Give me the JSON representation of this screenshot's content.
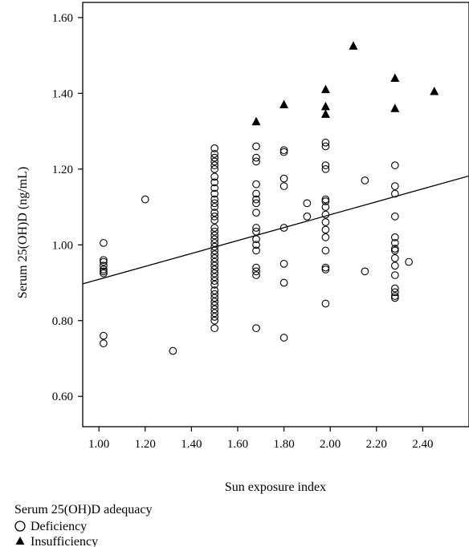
{
  "chart_data": {
    "type": "scatter",
    "title": "",
    "xlabel": "Sun exposure index",
    "ylabel": "Serum 25(OH)D (ng/mL)",
    "xlim": [
      0.93,
      2.6
    ],
    "ylim": [
      0.52,
      1.64
    ],
    "x_ticks": [
      1.0,
      1.2,
      1.4,
      1.6,
      1.8,
      2.0,
      2.2,
      2.4
    ],
    "x_tick_labels": [
      "1.00",
      "1.20",
      "1.40",
      "1.60",
      "1.80",
      "2.00",
      "2.20",
      "2.40"
    ],
    "y_ticks": [
      0.6,
      0.8,
      1.0,
      1.2,
      1.4,
      1.6
    ],
    "y_tick_labels": [
      "0.60",
      "0.80",
      "1.00",
      "1.20",
      "1.40",
      "1.60"
    ],
    "grid": false,
    "legend": {
      "title": "Serum 25(OH)D adequacy",
      "placement": "bottom-left",
      "entries": [
        "Deficiency",
        "Insufficiency"
      ]
    },
    "fit_line": {
      "x": [
        0.93,
        2.6
      ],
      "y": [
        0.897,
        1.182
      ]
    },
    "series": [
      {
        "name": "Deficiency",
        "marker": "open-circle",
        "points": [
          [
            1.02,
            1.005
          ],
          [
            1.02,
            0.96
          ],
          [
            1.02,
            0.955
          ],
          [
            1.02,
            0.945
          ],
          [
            1.02,
            0.935
          ],
          [
            1.02,
            0.93
          ],
          [
            1.02,
            0.925
          ],
          [
            1.02,
            0.76
          ],
          [
            1.02,
            0.74
          ],
          [
            1.2,
            1.12
          ],
          [
            1.32,
            0.72
          ],
          [
            1.5,
            1.255
          ],
          [
            1.5,
            1.24
          ],
          [
            1.5,
            1.23
          ],
          [
            1.5,
            1.22
          ],
          [
            1.5,
            1.21
          ],
          [
            1.5,
            1.2
          ],
          [
            1.5,
            1.18
          ],
          [
            1.5,
            1.165
          ],
          [
            1.5,
            1.15
          ],
          [
            1.5,
            1.135
          ],
          [
            1.5,
            1.12
          ],
          [
            1.5,
            1.11
          ],
          [
            1.5,
            1.1
          ],
          [
            1.5,
            1.085
          ],
          [
            1.5,
            1.075
          ],
          [
            1.5,
            1.065
          ],
          [
            1.5,
            1.045
          ],
          [
            1.5,
            1.035
          ],
          [
            1.5,
            1.025
          ],
          [
            1.5,
            1.015
          ],
          [
            1.5,
            1.005
          ],
          [
            1.5,
            0.995
          ],
          [
            1.5,
            0.985
          ],
          [
            1.5,
            0.975
          ],
          [
            1.5,
            0.965
          ],
          [
            1.5,
            0.955
          ],
          [
            1.5,
            0.945
          ],
          [
            1.5,
            0.935
          ],
          [
            1.5,
            0.925
          ],
          [
            1.5,
            0.915
          ],
          [
            1.5,
            0.905
          ],
          [
            1.5,
            0.895
          ],
          [
            1.5,
            0.88
          ],
          [
            1.5,
            0.87
          ],
          [
            1.5,
            0.86
          ],
          [
            1.5,
            0.85
          ],
          [
            1.5,
            0.84
          ],
          [
            1.5,
            0.83
          ],
          [
            1.5,
            0.82
          ],
          [
            1.5,
            0.81
          ],
          [
            1.5,
            0.8
          ],
          [
            1.5,
            0.78
          ],
          [
            1.68,
            1.26
          ],
          [
            1.68,
            1.23
          ],
          [
            1.68,
            1.22
          ],
          [
            1.68,
            1.16
          ],
          [
            1.68,
            1.135
          ],
          [
            1.68,
            1.12
          ],
          [
            1.68,
            1.11
          ],
          [
            1.68,
            1.085
          ],
          [
            1.68,
            1.045
          ],
          [
            1.68,
            1.035
          ],
          [
            1.68,
            1.015
          ],
          [
            1.68,
            1.0
          ],
          [
            1.68,
            0.985
          ],
          [
            1.68,
            0.94
          ],
          [
            1.68,
            0.93
          ],
          [
            1.68,
            0.92
          ],
          [
            1.68,
            0.78
          ],
          [
            1.8,
            1.25
          ],
          [
            1.8,
            1.245
          ],
          [
            1.8,
            1.175
          ],
          [
            1.8,
            1.155
          ],
          [
            1.8,
            1.045
          ],
          [
            1.8,
            0.95
          ],
          [
            1.8,
            0.9
          ],
          [
            1.8,
            0.755
          ],
          [
            1.9,
            1.11
          ],
          [
            1.9,
            1.075
          ],
          [
            1.98,
            1.27
          ],
          [
            1.98,
            1.26
          ],
          [
            1.98,
            1.21
          ],
          [
            1.98,
            1.2
          ],
          [
            1.98,
            1.12
          ],
          [
            1.98,
            1.115
          ],
          [
            1.98,
            1.1
          ],
          [
            1.98,
            1.08
          ],
          [
            1.98,
            1.06
          ],
          [
            1.98,
            1.04
          ],
          [
            1.98,
            1.02
          ],
          [
            1.98,
            0.985
          ],
          [
            1.98,
            0.94
          ],
          [
            1.98,
            0.935
          ],
          [
            1.98,
            0.845
          ],
          [
            2.15,
            1.17
          ],
          [
            2.15,
            0.93
          ],
          [
            2.28,
            1.21
          ],
          [
            2.28,
            1.155
          ],
          [
            2.28,
            1.135
          ],
          [
            2.28,
            1.075
          ],
          [
            2.28,
            1.02
          ],
          [
            2.28,
            1.005
          ],
          [
            2.28,
            0.99
          ],
          [
            2.28,
            0.985
          ],
          [
            2.28,
            0.965
          ],
          [
            2.28,
            0.945
          ],
          [
            2.28,
            0.92
          ],
          [
            2.28,
            0.885
          ],
          [
            2.28,
            0.875
          ],
          [
            2.28,
            0.865
          ],
          [
            2.28,
            0.86
          ],
          [
            2.34,
            0.955
          ]
        ]
      },
      {
        "name": "Insufficiency",
        "marker": "filled-triangle",
        "points": [
          [
            1.68,
            1.325
          ],
          [
            1.8,
            1.37
          ],
          [
            1.98,
            1.41
          ],
          [
            1.98,
            1.365
          ],
          [
            1.98,
            1.345
          ],
          [
            2.1,
            1.525
          ],
          [
            2.28,
            1.44
          ],
          [
            2.28,
            1.36
          ],
          [
            2.45,
            1.405
          ]
        ]
      }
    ]
  }
}
